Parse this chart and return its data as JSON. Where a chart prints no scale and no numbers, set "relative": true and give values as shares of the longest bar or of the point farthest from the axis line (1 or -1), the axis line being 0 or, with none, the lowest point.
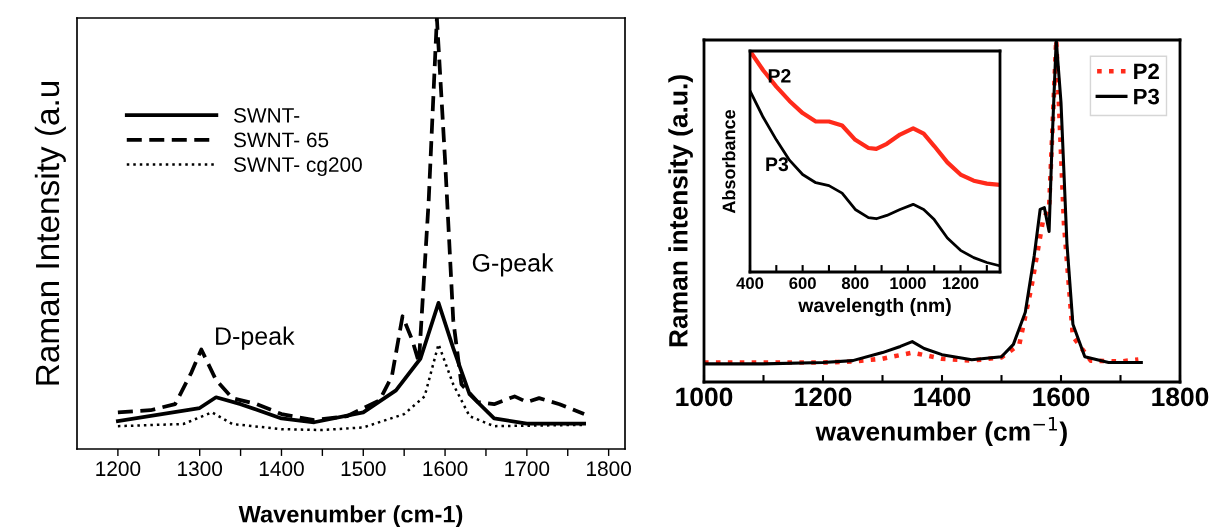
{
  "chart_data": [
    {
      "type": "line",
      "xlabel": "Wavenumber (cm-1)",
      "ylabel": "Raman Intensity (a.u",
      "relative": true,
      "tick_labels": "x",
      "legend": "top left",
      "grid": false,
      "annotations": [
        "D-peak",
        "G-peak"
      ],
      "xlim": [
        1150,
        1820
      ],
      "xticks": [
        1200,
        {
          "value": 1250,
          "label": null
        },
        1300,
        {
          "value": 1350,
          "label": null
        },
        1400,
        {
          "value": 1450,
          "label": null
        },
        1500,
        {
          "value": 1550,
          "label": null
        },
        1600,
        {
          "value": 1650,
          "label": null
        },
        1700,
        {
          "value": 1750,
          "label": null
        },
        1800
      ],
      "series": [
        {
          "name": "SWNT-",
          "color": "#000000",
          "line_style": "solid",
          "x": [
            1200,
            1300,
            1320,
            1350,
            1400,
            1440,
            1500,
            1540,
            1570,
            1592,
            1610,
            1630,
            1660,
            1700,
            1770
          ],
          "values": [
            0.065,
            0.095,
            0.12,
            0.104,
            0.071,
            0.062,
            0.085,
            0.136,
            0.21,
            0.339,
            0.234,
            0.127,
            0.071,
            0.059,
            0.059
          ]
        },
        {
          "name": "SWNT- 65",
          "color": "#000000",
          "line_style": "dashed",
          "x": [
            1200,
            1240,
            1270,
            1290,
            1302,
            1320,
            1340,
            1370,
            1400,
            1440,
            1480,
            1520,
            1535,
            1548,
            1560,
            1568,
            1580,
            1590,
            1600,
            1610,
            1620,
            1640,
            1660,
            1685,
            1700,
            1715,
            1740,
            1770
          ],
          "values": [
            0.085,
            0.09,
            0.104,
            0.178,
            0.231,
            0.16,
            0.118,
            0.104,
            0.081,
            0.067,
            0.076,
            0.113,
            0.169,
            0.308,
            0.252,
            0.201,
            0.577,
            1.0,
            0.67,
            0.299,
            0.15,
            0.109,
            0.104,
            0.122,
            0.109,
            0.118,
            0.104,
            0.081
          ]
        },
        {
          "name": "SWNT- cg200",
          "color": "#000000",
          "line_style": "dotted",
          "x": [
            1200,
            1280,
            1315,
            1340,
            1400,
            1450,
            1500,
            1550,
            1575,
            1592,
            1610,
            1630,
            1660,
            1770
          ],
          "values": [
            0.053,
            0.058,
            0.085,
            0.058,
            0.046,
            0.044,
            0.05,
            0.081,
            0.122,
            0.243,
            0.15,
            0.076,
            0.053,
            0.056
          ]
        }
      ]
    },
    {
      "type": "line",
      "xlabel": "wavenumber (cm$^{−1}$)",
      "ylabel": "Raman intensity (a.u.)",
      "relative": true,
      "tick_labels": "x",
      "legend": "top right",
      "grid": false,
      "xlim": [
        1000,
        1800
      ],
      "xticks": [
        1000,
        {
          "value": 1100,
          "label": null
        },
        1200,
        {
          "value": 1300,
          "label": null
        },
        1400,
        {
          "value": 1500,
          "label": null
        },
        1600,
        {
          "value": 1700,
          "label": null
        },
        1800
      ],
      "series": [
        {
          "name": "P2",
          "color": "#ff2a1a",
          "line_style": "dotted",
          "x": [
            1000,
            1200,
            1250,
            1300,
            1350,
            1400,
            1450,
            1500,
            1530,
            1550,
            1570,
            1580,
            1592,
            1605,
            1620,
            1650,
            1700,
            1730
          ],
          "values": [
            0.057,
            0.057,
            0.06,
            0.068,
            0.086,
            0.068,
            0.0625,
            0.072,
            0.11,
            0.275,
            0.475,
            0.51,
            1.0,
            0.463,
            0.133,
            0.0625,
            0.06,
            0.066
          ]
        },
        {
          "name": "P3",
          "color": "#000000",
          "line_style": "solid",
          "x": [
            1000,
            1100,
            1200,
            1250,
            1300,
            1330,
            1350,
            1370,
            1400,
            1450,
            1500,
            1520,
            1540,
            1555,
            1565,
            1572,
            1580,
            1585,
            1592,
            1600,
            1610,
            1620,
            1640,
            1680,
            1735
          ],
          "values": [
            0.053,
            0.053,
            0.057,
            0.0625,
            0.086,
            0.104,
            0.118,
            0.098,
            0.08,
            0.065,
            0.074,
            0.11,
            0.204,
            0.369,
            0.505,
            0.51,
            0.44,
            0.7,
            1.0,
            0.817,
            0.404,
            0.169,
            0.074,
            0.057,
            0.057
          ]
        }
      ]
    },
    {
      "type": "line",
      "xlabel": "wavelength (nm)",
      "ylabel": "Absorbance",
      "relative": true,
      "tick_labels": "x",
      "legend": false,
      "grid": false,
      "xlim": [
        400,
        1350
      ],
      "xticks": [
        400,
        {
          "value": 500,
          "label": null
        },
        600,
        {
          "value": 700,
          "label": null
        },
        800,
        {
          "value": 900,
          "label": null
        },
        1000,
        {
          "value": 1100,
          "label": null
        },
        1200,
        {
          "value": 1300,
          "label": null
        }
      ],
      "series": [
        {
          "name": "P2",
          "color": "#ff2a1a",
          "line_style": "solid",
          "x": [
            400,
            450,
            500,
            550,
            600,
            650,
            700,
            750,
            800,
            850,
            880,
            920,
            970,
            1020,
            1060,
            1100,
            1150,
            1200,
            1250,
            1300,
            1350
          ],
          "values": [
            1.0,
            0.913,
            0.839,
            0.774,
            0.719,
            0.681,
            0.681,
            0.663,
            0.598,
            0.561,
            0.557,
            0.58,
            0.622,
            0.65,
            0.626,
            0.57,
            0.496,
            0.441,
            0.413,
            0.4,
            0.394
          ]
        },
        {
          "name": "P3",
          "color": "#000000",
          "line_style": "solid",
          "x": [
            400,
            450,
            500,
            550,
            600,
            650,
            700,
            750,
            800,
            850,
            880,
            920,
            970,
            1020,
            1060,
            1100,
            1150,
            1200,
            1250,
            1300,
            1350
          ],
          "values": [
            0.82,
            0.7,
            0.598,
            0.506,
            0.441,
            0.404,
            0.391,
            0.357,
            0.283,
            0.246,
            0.241,
            0.256,
            0.283,
            0.306,
            0.283,
            0.237,
            0.154,
            0.098,
            0.065,
            0.043,
            0.028
          ]
        }
      ]
    }
  ]
}
